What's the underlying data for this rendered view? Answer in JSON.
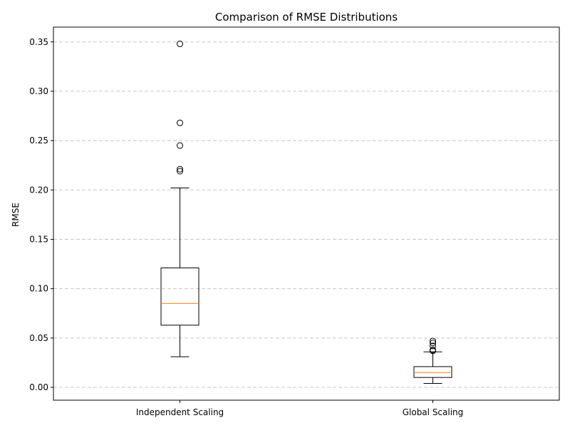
{
  "chart_data": {
    "type": "boxplot",
    "title": "Comparison of RMSE Distributions",
    "xlabel": "",
    "ylabel": "RMSE",
    "ylim": [
      -0.013,
      0.365
    ],
    "yticks": [
      "0.00",
      "0.05",
      "0.10",
      "0.15",
      "0.20",
      "0.25",
      "0.30",
      "0.35"
    ],
    "ytick_values": [
      0.0,
      0.05,
      0.1,
      0.15,
      0.2,
      0.25,
      0.3,
      0.35
    ],
    "grid": "y-dashed",
    "categories": [
      "Independent Scaling",
      "Global Scaling"
    ],
    "boxes": [
      {
        "whisker_low": 0.031,
        "q1": 0.063,
        "median": 0.085,
        "q3": 0.121,
        "whisker_high": 0.202,
        "outliers": [
          0.219,
          0.221,
          0.245,
          0.268,
          0.348
        ]
      },
      {
        "whisker_low": 0.004,
        "q1": 0.01,
        "median": 0.015,
        "q3": 0.021,
        "whisker_high": 0.036,
        "outliers": [
          0.037,
          0.038,
          0.042,
          0.045,
          0.047
        ]
      }
    ],
    "colors": {
      "box": "#000000",
      "median": "#ff7f0e",
      "grid": "#c8c8c8"
    }
  }
}
